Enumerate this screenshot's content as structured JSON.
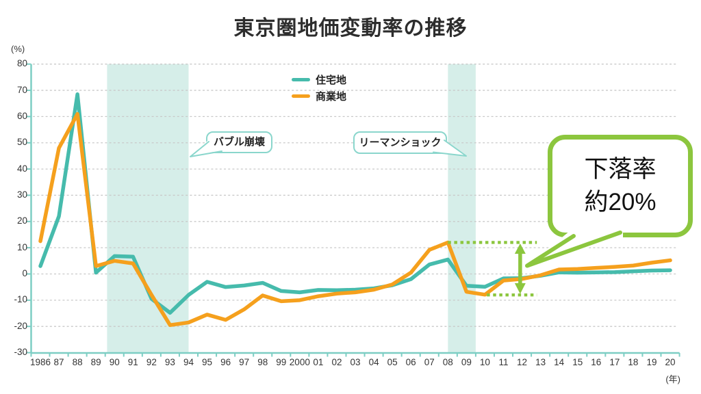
{
  "title": "東京圏地価変動率の推移",
  "axis": {
    "y_unit_label": "(%)",
    "x_unit_label": "(年)",
    "y_ticks": [
      80,
      70,
      60,
      50,
      40,
      30,
      20,
      10,
      0,
      -10,
      -20,
      -30
    ],
    "x_tick_labels": [
      "1986",
      "87",
      "88",
      "89",
      "90",
      "91",
      "92",
      "93",
      "94",
      "95",
      "96",
      "97",
      "98",
      "99",
      "2000",
      "01",
      "02",
      "03",
      "04",
      "05",
      "06",
      "07",
      "08",
      "09",
      "10",
      "11",
      "12",
      "13",
      "14",
      "15",
      "16",
      "17",
      "18",
      "19",
      "20"
    ]
  },
  "legend": [
    {
      "label": "住宅地",
      "color": "#46BBAC"
    },
    {
      "label": "商業地",
      "color": "#F5A01D"
    }
  ],
  "annotations": {
    "bubble_collapse": "バブル崩壊",
    "lehman_shock": "リーマンショック",
    "callout_line1": "下落率",
    "callout_line2": "約20%"
  },
  "colors": {
    "residential": "#46BBAC",
    "commercial": "#F5A01D",
    "band": "#D6EEE9",
    "axis": "#7DCEC4",
    "gridline": "#C9C9C9",
    "annotation_green": "#8CC63E",
    "bubble_border": "#8AD6CC",
    "text": "#333333"
  },
  "chart_data": {
    "type": "line",
    "title": "東京圏地価変動率の推移",
    "xlabel": "(年)",
    "ylabel": "(%)",
    "ylim": [
      -30,
      80
    ],
    "grid": true,
    "legend_position": "top-center",
    "x": [
      1986,
      1987,
      1988,
      1989,
      1990,
      1991,
      1992,
      1993,
      1994,
      1995,
      1996,
      1997,
      1998,
      1999,
      2000,
      2001,
      2002,
      2003,
      2004,
      2005,
      2006,
      2007,
      2008,
      2009,
      2010,
      2011,
      2012,
      2013,
      2014,
      2015,
      2016,
      2017,
      2018,
      2019,
      2020
    ],
    "series": [
      {
        "name": "住宅地",
        "color": "#46BBAC",
        "values": [
          3,
          22,
          68.5,
          0.5,
          6.8,
          6.6,
          -9.5,
          -14.8,
          -8,
          -3,
          -5,
          -4.4,
          -3.4,
          -6.5,
          -7,
          -6.1,
          -6.2,
          -6,
          -5.5,
          -4.3,
          -2,
          3.6,
          5.5,
          -4.5,
          -4.9,
          -1.7,
          -1.6,
          -0.7,
          0.6,
          0.5,
          0.6,
          0.7,
          1,
          1.3,
          1.4
        ]
      },
      {
        "name": "商業地",
        "color": "#F5A01D",
        "values": [
          12.5,
          48,
          61,
          3,
          5,
          4,
          -8,
          -19.5,
          -18.5,
          -15.5,
          -17.5,
          -13.5,
          -8.2,
          -10.4,
          -10,
          -8.5,
          -7.5,
          -7,
          -6,
          -4,
          0.5,
          9.2,
          12,
          -6.8,
          -7.9,
          -2.5,
          -1.9,
          -0.5,
          1.7,
          1.9,
          2.3,
          2.7,
          3.2,
          4.3,
          5.2
        ]
      }
    ],
    "highlight_bands": [
      {
        "x_from": 1989.6,
        "x_to": 1994
      },
      {
        "x_from": 2008,
        "x_to": 2009.5
      }
    ],
    "drop_annotation": {
      "top_value": 12,
      "bottom_value": -8,
      "arrow_x": 2011.9,
      "label": "下落率約20%"
    }
  }
}
